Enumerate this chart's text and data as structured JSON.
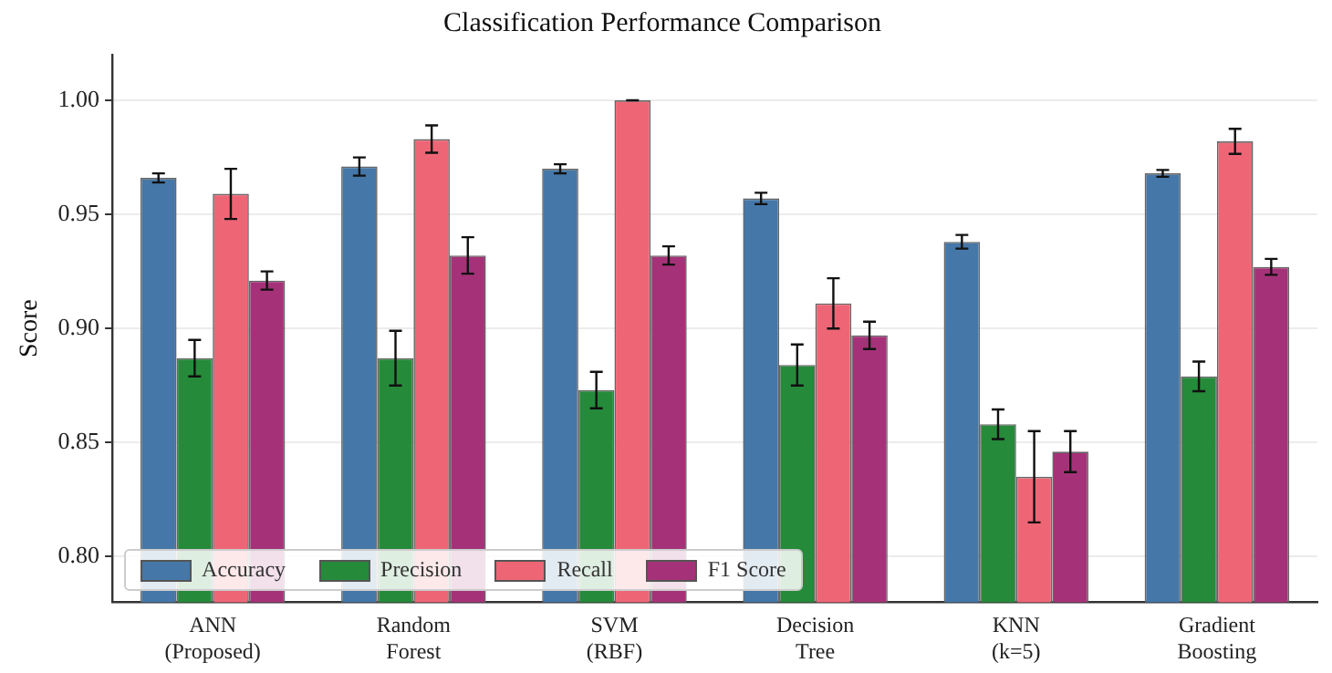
{
  "chart_data": {
    "type": "bar",
    "title": "Classification Performance Comparison",
    "ylabel": "Score",
    "categories": [
      "ANN (Proposed)",
      "Random Forest",
      "SVM (RBF)",
      "Decision Tree",
      "KNN (k=5)",
      "Gradient Boosting"
    ],
    "series": [
      {
        "name": "Accuracy",
        "color": "#4577a8",
        "values": [
          0.966,
          0.971,
          0.97,
          0.957,
          0.938,
          0.968
        ],
        "errors": [
          0.002,
          0.004,
          0.002,
          0.0025,
          0.003,
          0.0015
        ]
      },
      {
        "name": "Precision",
        "color": "#258a3a",
        "values": [
          0.887,
          0.887,
          0.873,
          0.884,
          0.858,
          0.879
        ],
        "errors": [
          0.008,
          0.012,
          0.008,
          0.009,
          0.0065,
          0.0065
        ]
      },
      {
        "name": "Recall",
        "color": "#ee6676",
        "values": [
          0.959,
          0.983,
          1.0,
          0.911,
          0.835,
          0.982
        ],
        "errors": [
          0.011,
          0.006,
          0,
          0.011,
          0.02,
          0.0055
        ]
      },
      {
        "name": "F1 Score",
        "color": "#a53278",
        "values": [
          0.921,
          0.932,
          0.932,
          0.897,
          0.846,
          0.927
        ],
        "errors": [
          0.004,
          0.008,
          0.004,
          0.006,
          0.009,
          0.0035
        ]
      }
    ],
    "ylim": [
      0.78,
      1.02
    ],
    "yticks": [
      {
        "value": 0.8,
        "label": "0.80"
      },
      {
        "value": 0.85,
        "label": "0.85"
      },
      {
        "value": 0.9,
        "label": "0.90"
      },
      {
        "value": 0.95,
        "label": "0.95"
      },
      {
        "value": 1.0,
        "label": "1.00"
      }
    ],
    "grid": "y",
    "legend": "bottom left"
  }
}
